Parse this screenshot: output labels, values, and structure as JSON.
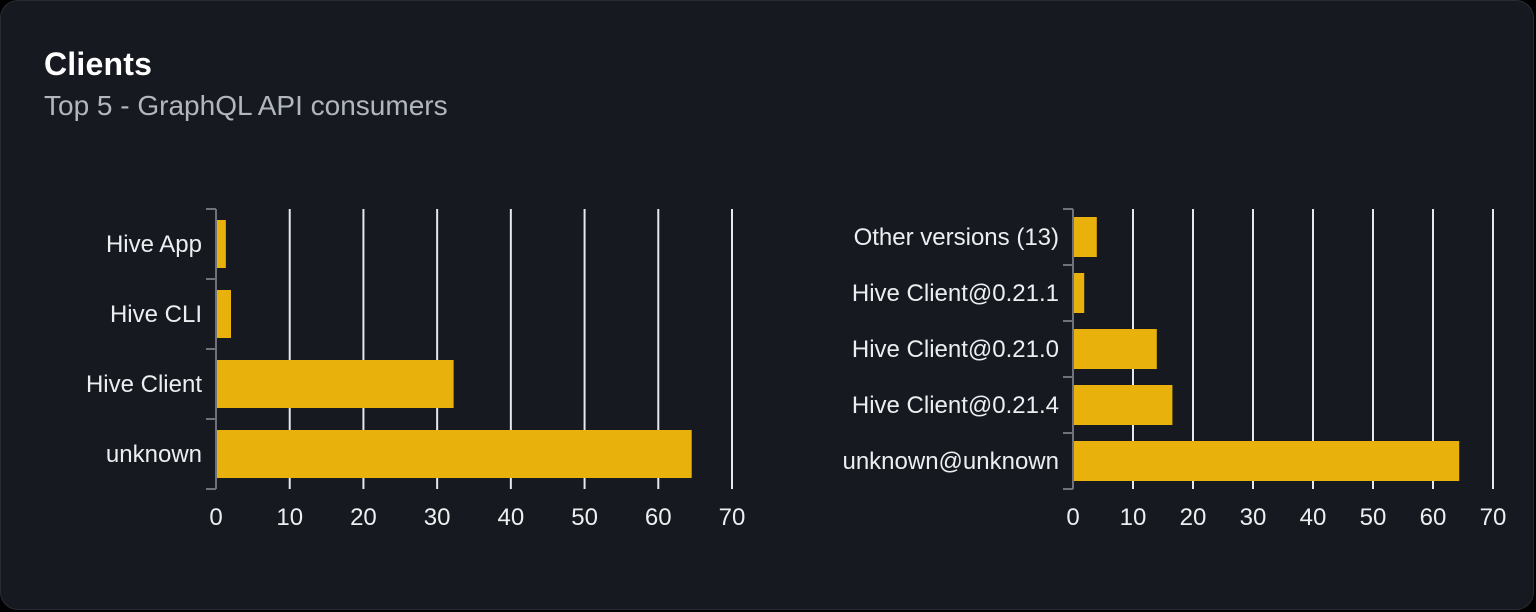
{
  "card": {
    "title": "Clients",
    "subtitle": "Top 5 - GraphQL API consumers"
  },
  "colors": {
    "page_bg": "#000000",
    "card_bg": "#161a20",
    "card_border": "#272c34",
    "title": "#ffffff",
    "subtitle": "#b2b7be",
    "bar": "#e9b10c",
    "gridline": "#e5e8ec",
    "axis": "#6e737b",
    "label": "#eceef0",
    "tick_label": "#eceef0"
  },
  "chart_data": [
    {
      "type": "bar",
      "orientation": "horizontal",
      "title": "",
      "categories": [
        "Hive App",
        "Hive CLI",
        "Hive Client",
        "unknown"
      ],
      "values": [
        1.2,
        1.9,
        32.1,
        64.4
      ],
      "xlabel": "",
      "ylabel": "",
      "xlim": [
        0,
        70
      ],
      "xticks": [
        0,
        10,
        20,
        30,
        40,
        50,
        60,
        70
      ],
      "grid": true,
      "legend": "none",
      "bar_color": "#e9b10c"
    },
    {
      "type": "bar",
      "orientation": "horizontal",
      "title": "",
      "categories": [
        "Other versions (13)",
        "Hive Client@0.21.1",
        "Hive Client@0.21.0",
        "Hive Client@0.21.4",
        "unknown@unknown"
      ],
      "values": [
        3.8,
        1.7,
        13.8,
        16.4,
        64.2
      ],
      "xlabel": "",
      "ylabel": "",
      "xlim": [
        0,
        70
      ],
      "xticks": [
        0,
        10,
        20,
        30,
        40,
        50,
        60,
        70
      ],
      "grid": true,
      "legend": "none",
      "bar_color": "#e9b10c"
    }
  ]
}
